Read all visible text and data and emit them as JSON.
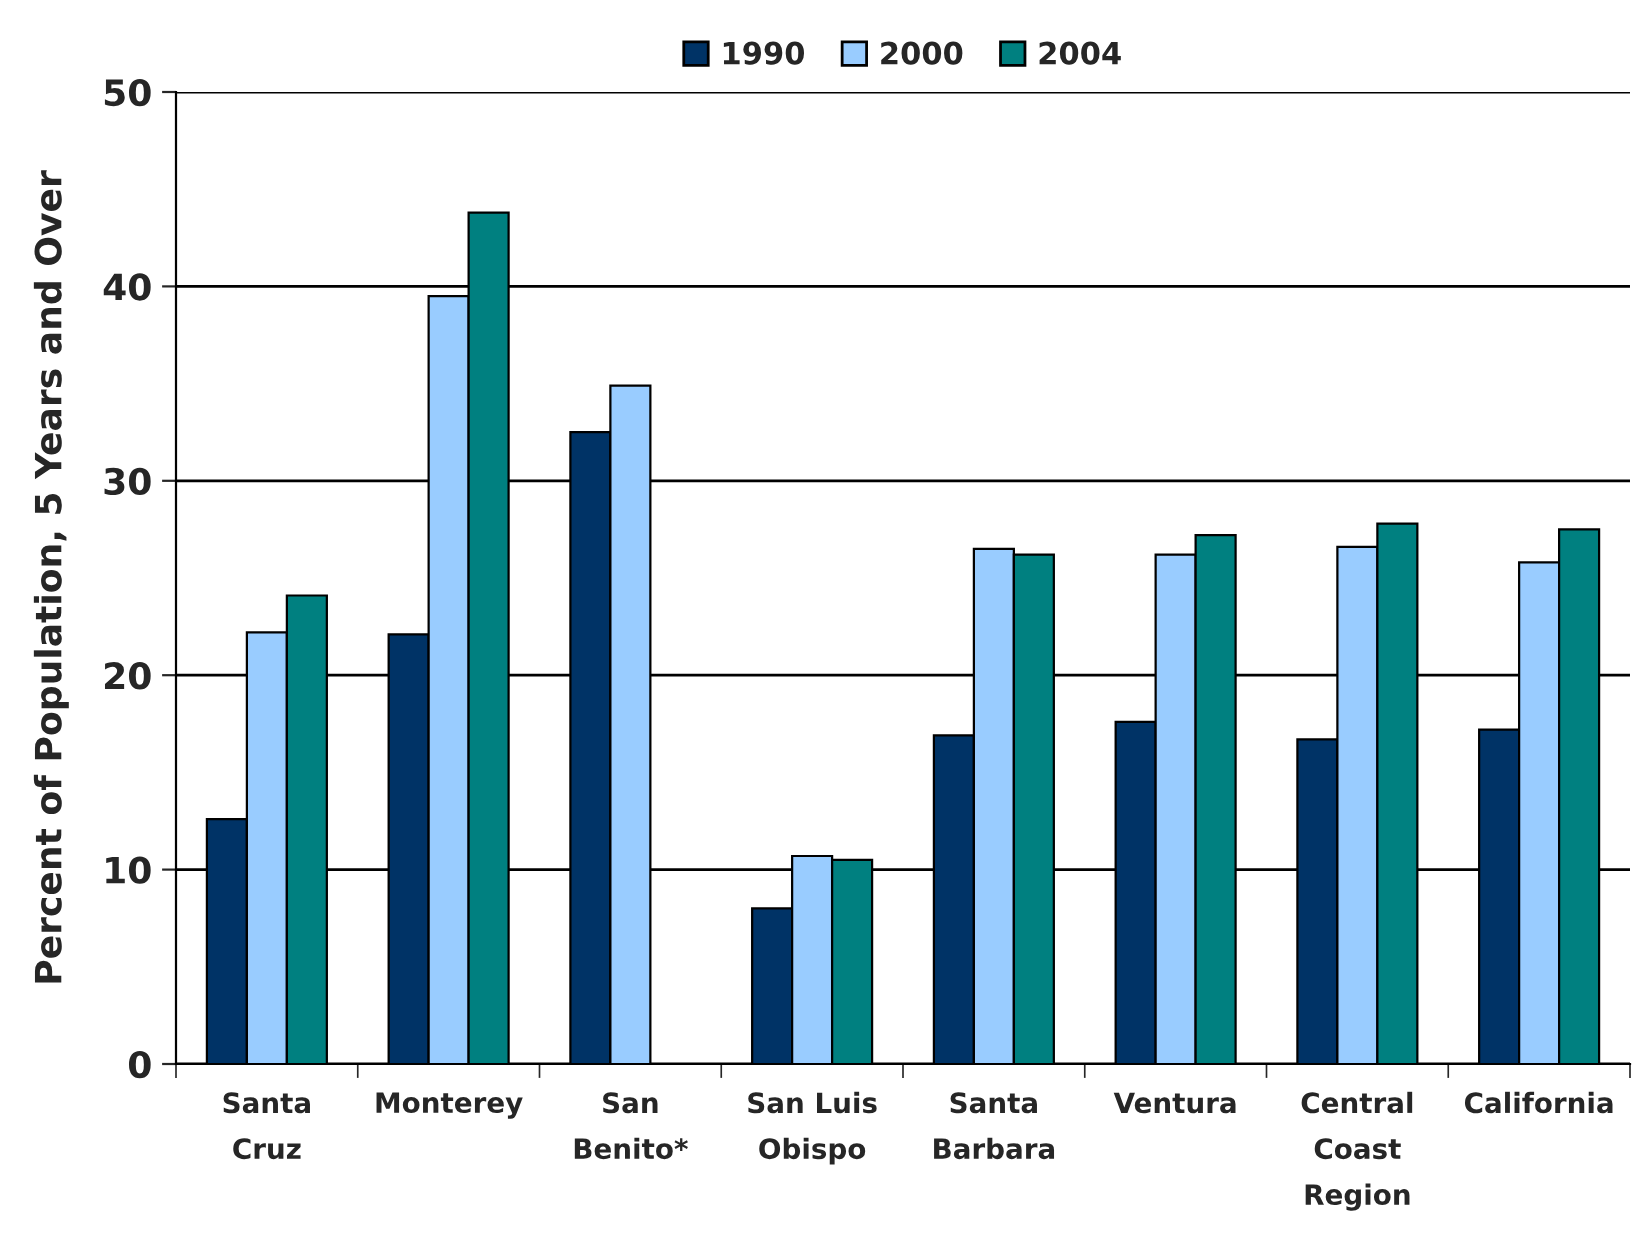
{
  "chart_data": {
    "type": "bar",
    "ylabel": "Percent of Population, 5 Years and Over",
    "categories": [
      "Santa\nCruz",
      "Monterey",
      "San\nBenito*",
      "San Luis\nObispo",
      "Santa\nBarbara",
      "Ventura",
      "Central\nCoast\nRegion",
      "California"
    ],
    "series": [
      {
        "name": "1990",
        "color": "#003366",
        "values": [
          12.6,
          22.1,
          32.5,
          8.0,
          16.9,
          17.6,
          16.7,
          17.2
        ]
      },
      {
        "name": "2000",
        "color": "#99ccff",
        "values": [
          22.2,
          39.5,
          34.9,
          10.7,
          26.5,
          26.2,
          26.6,
          25.8
        ]
      },
      {
        "name": "2004",
        "color": "#008080",
        "values": [
          24.1,
          43.8,
          null,
          10.5,
          26.2,
          27.2,
          27.8,
          27.5
        ]
      }
    ],
    "ylim": [
      0,
      50
    ],
    "yticks": [
      0,
      10,
      20,
      30,
      40,
      50
    ],
    "grid": "y",
    "legend": "top"
  }
}
